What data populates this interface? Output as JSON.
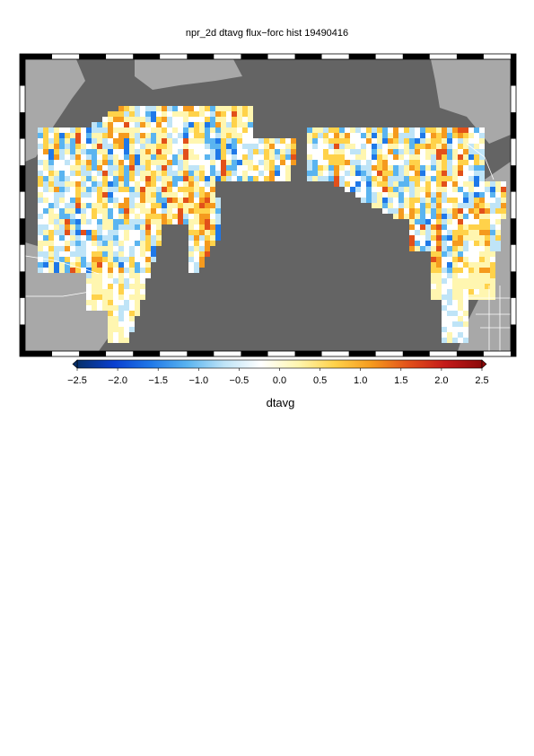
{
  "title": "npr_2d dtavg flux−forc hist 19490416",
  "colorbar": {
    "label": "dtavg",
    "ticks": [
      "−2.5",
      "−2.0",
      "−1.5",
      "−1.0",
      "−0.5",
      "0.0",
      "0.5",
      "1.0",
      "1.5",
      "2.0",
      "2.5"
    ],
    "min": -2.5,
    "max": 2.5,
    "colors": [
      "#08306b",
      "#0a3fd0",
      "#1f78e8",
      "#5ab4f0",
      "#bfe4f7",
      "#ffffff",
      "#fff6b0",
      "#ffd24a",
      "#f59a1e",
      "#e2501a",
      "#c41a1a",
      "#8c0a0a"
    ]
  },
  "map": {
    "ocean_color": "#646464",
    "land_color": "#a8a8a8",
    "border_color": "#ffffff"
  }
}
